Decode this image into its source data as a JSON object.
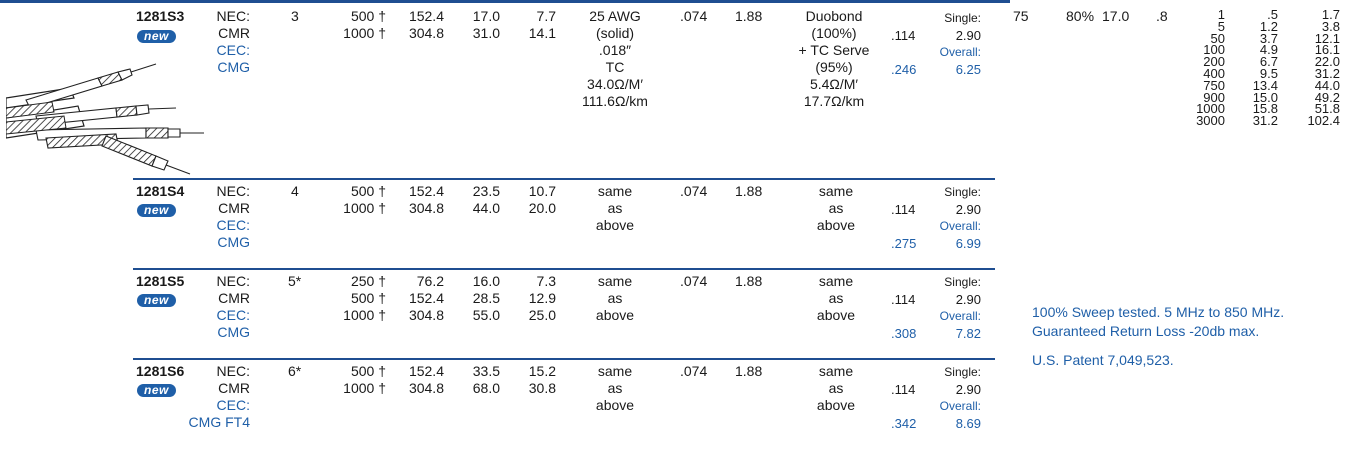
{
  "rows": [
    {
      "part": "1281S3",
      "badge": "new",
      "nec_label": "NEC:",
      "nec_value": "CMR",
      "cec_label": "CEC:",
      "cec_value": "CMG",
      "conductors": "3",
      "lengths_ft": [
        "500 †",
        "1000 †"
      ],
      "lengths_m": [
        "152.4",
        "304.8"
      ],
      "weight_lbs": [
        "17.0",
        "31.0"
      ],
      "weight_kg": [
        "7.7",
        "14.1"
      ],
      "conductor_desc": [
        "25 AWG",
        "(solid)",
        ".018″",
        "TC",
        "34.0Ω/M′",
        "111.6Ω/km"
      ],
      "insulation_in": ".074",
      "insulation_mm": "1.88",
      "shield_desc": [
        "Duobond",
        "(100%)",
        "+ TC Serve",
        "(95%)",
        "5.4Ω/M′",
        "17.7Ω/km"
      ],
      "single_label": "Single:",
      "single_in": ".114",
      "single_mm": "2.90",
      "overall_label": "Overall:",
      "overall_in": ".246",
      "overall_mm": "6.25"
    },
    {
      "part": "1281S4",
      "badge": "new",
      "nec_label": "NEC:",
      "nec_value": "CMR",
      "cec_label": "CEC:",
      "cec_value": "CMG",
      "conductors": "4",
      "lengths_ft": [
        "500 †",
        "1000 †"
      ],
      "lengths_m": [
        "152.4",
        "304.8"
      ],
      "weight_lbs": [
        "23.5",
        "44.0"
      ],
      "weight_kg": [
        "10.7",
        "20.0"
      ],
      "conductor_desc": [
        "same",
        "as",
        "above"
      ],
      "insulation_in": ".074",
      "insulation_mm": "1.88",
      "shield_desc": [
        "same",
        "as",
        "above"
      ],
      "single_label": "Single:",
      "single_in": ".114",
      "single_mm": "2.90",
      "overall_label": "Overall:",
      "overall_in": ".275",
      "overall_mm": "6.99"
    },
    {
      "part": "1281S5",
      "badge": "new",
      "nec_label": "NEC:",
      "nec_value": "CMR",
      "cec_label": "CEC:",
      "cec_value": "CMG",
      "conductors": "5*",
      "lengths_ft": [
        "250 †",
        "500 †",
        "1000 †"
      ],
      "lengths_m": [
        "76.2",
        "152.4",
        "304.8"
      ],
      "weight_lbs": [
        "16.0",
        "28.5",
        "55.0"
      ],
      "weight_kg": [
        "7.3",
        "12.9",
        "25.0"
      ],
      "conductor_desc": [
        "same",
        "as",
        "above"
      ],
      "insulation_in": ".074",
      "insulation_mm": "1.88",
      "shield_desc": [
        "same",
        "as",
        "above"
      ],
      "single_label": "Single:",
      "single_in": ".114",
      "single_mm": "2.90",
      "overall_label": "Overall:",
      "overall_in": ".308",
      "overall_mm": "7.82"
    },
    {
      "part": "1281S6",
      "badge": "new",
      "nec_label": "NEC:",
      "nec_value": "CMR",
      "cec_label": "CEC:",
      "cec_value": "CMG FT4",
      "conductors": "6*",
      "lengths_ft": [
        "500 †",
        "1000 †"
      ],
      "lengths_m": [
        "152.4",
        "304.8"
      ],
      "weight_lbs": [
        "33.5",
        "68.0"
      ],
      "weight_kg": [
        "15.2",
        "30.8"
      ],
      "conductor_desc": [
        "same",
        "as",
        "above"
      ],
      "insulation_in": ".074",
      "insulation_mm": "1.88",
      "shield_desc": [
        "same",
        "as",
        "above"
      ],
      "single_label": "Single:",
      "single_in": ".114",
      "single_mm": "2.90",
      "overall_label": "Overall:",
      "overall_in": ".342",
      "overall_mm": "8.69"
    }
  ],
  "specs": {
    "impedance": "75",
    "velocity": "80%",
    "capacitance": "17.0",
    "delay": ".8"
  },
  "attenuation": {
    "freq": [
      "1",
      "5",
      "50",
      "100",
      "200",
      "400",
      "750",
      "900",
      "1000",
      "3000"
    ],
    "db100ft": [
      ".5",
      "1.2",
      "3.7",
      "4.9",
      "6.7",
      "9.5",
      "13.4",
      "15.0",
      "15.8",
      "31.2"
    ],
    "db100m": [
      "1.7",
      "3.8",
      "12.1",
      "16.1",
      "22.0",
      "31.2",
      "44.0",
      "49.2",
      "51.8",
      "102.4"
    ]
  },
  "notes": {
    "sweep": "100% Sweep tested. 5 MHz to 850 MHz.",
    "return_loss": "Guaranteed Return Loss -20db max.",
    "patent": "U.S. Patent 7,049,523."
  },
  "colors": {
    "accent": "#1f5fa8",
    "rule": "#1f4e91"
  },
  "icons": {
    "cable": "coax-bundle-cable-illustration"
  }
}
